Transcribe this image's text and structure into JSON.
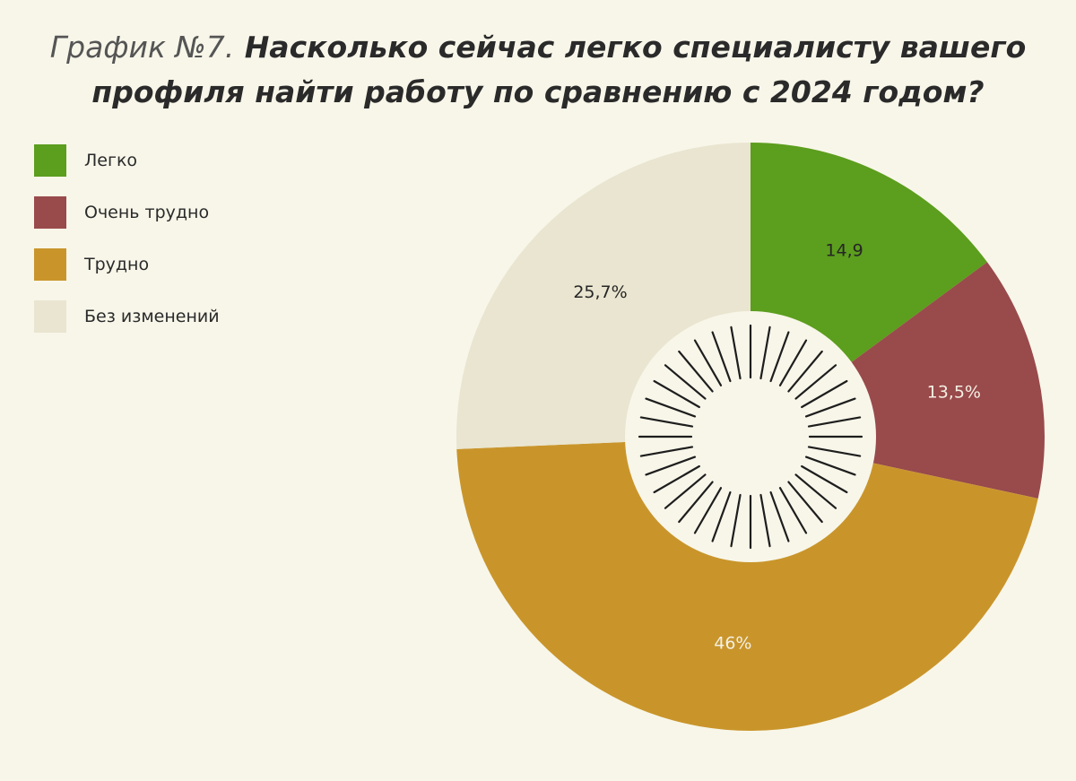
{
  "title": {
    "prefix": "График №7.",
    "line1": "Насколько сейчас легко специалисту вашего",
    "line2": "профиля найти работу по сравнению с 2024 годом?"
  },
  "legend": [
    {
      "label": "Легко",
      "color": "#5c9e1d"
    },
    {
      "label": "Очень трудно",
      "color": "#994a4b"
    },
    {
      "label": "Трудно",
      "color": "#c9952b"
    },
    {
      "label": "Без изменений",
      "color": "#e9e5d0"
    }
  ],
  "chart_data": {
    "type": "pie",
    "style": "donut",
    "categories": [
      "Легко",
      "Очень трудно",
      "Трудно",
      "Без изменений"
    ],
    "values": [
      14.9,
      13.5,
      46,
      25.7
    ],
    "value_labels": [
      "14,9",
      "13,5%",
      "46%",
      "25,7%"
    ],
    "colors": [
      "#5c9e1d",
      "#994a4b",
      "#c9952b",
      "#e9e5d0"
    ],
    "label_colors": [
      "#262626",
      "#f4f0e4",
      "#f4f0e4",
      "#262626"
    ],
    "center_color": "#f8f6e9",
    "tick_color": "#1e1e1e",
    "legend_position": "left"
  }
}
